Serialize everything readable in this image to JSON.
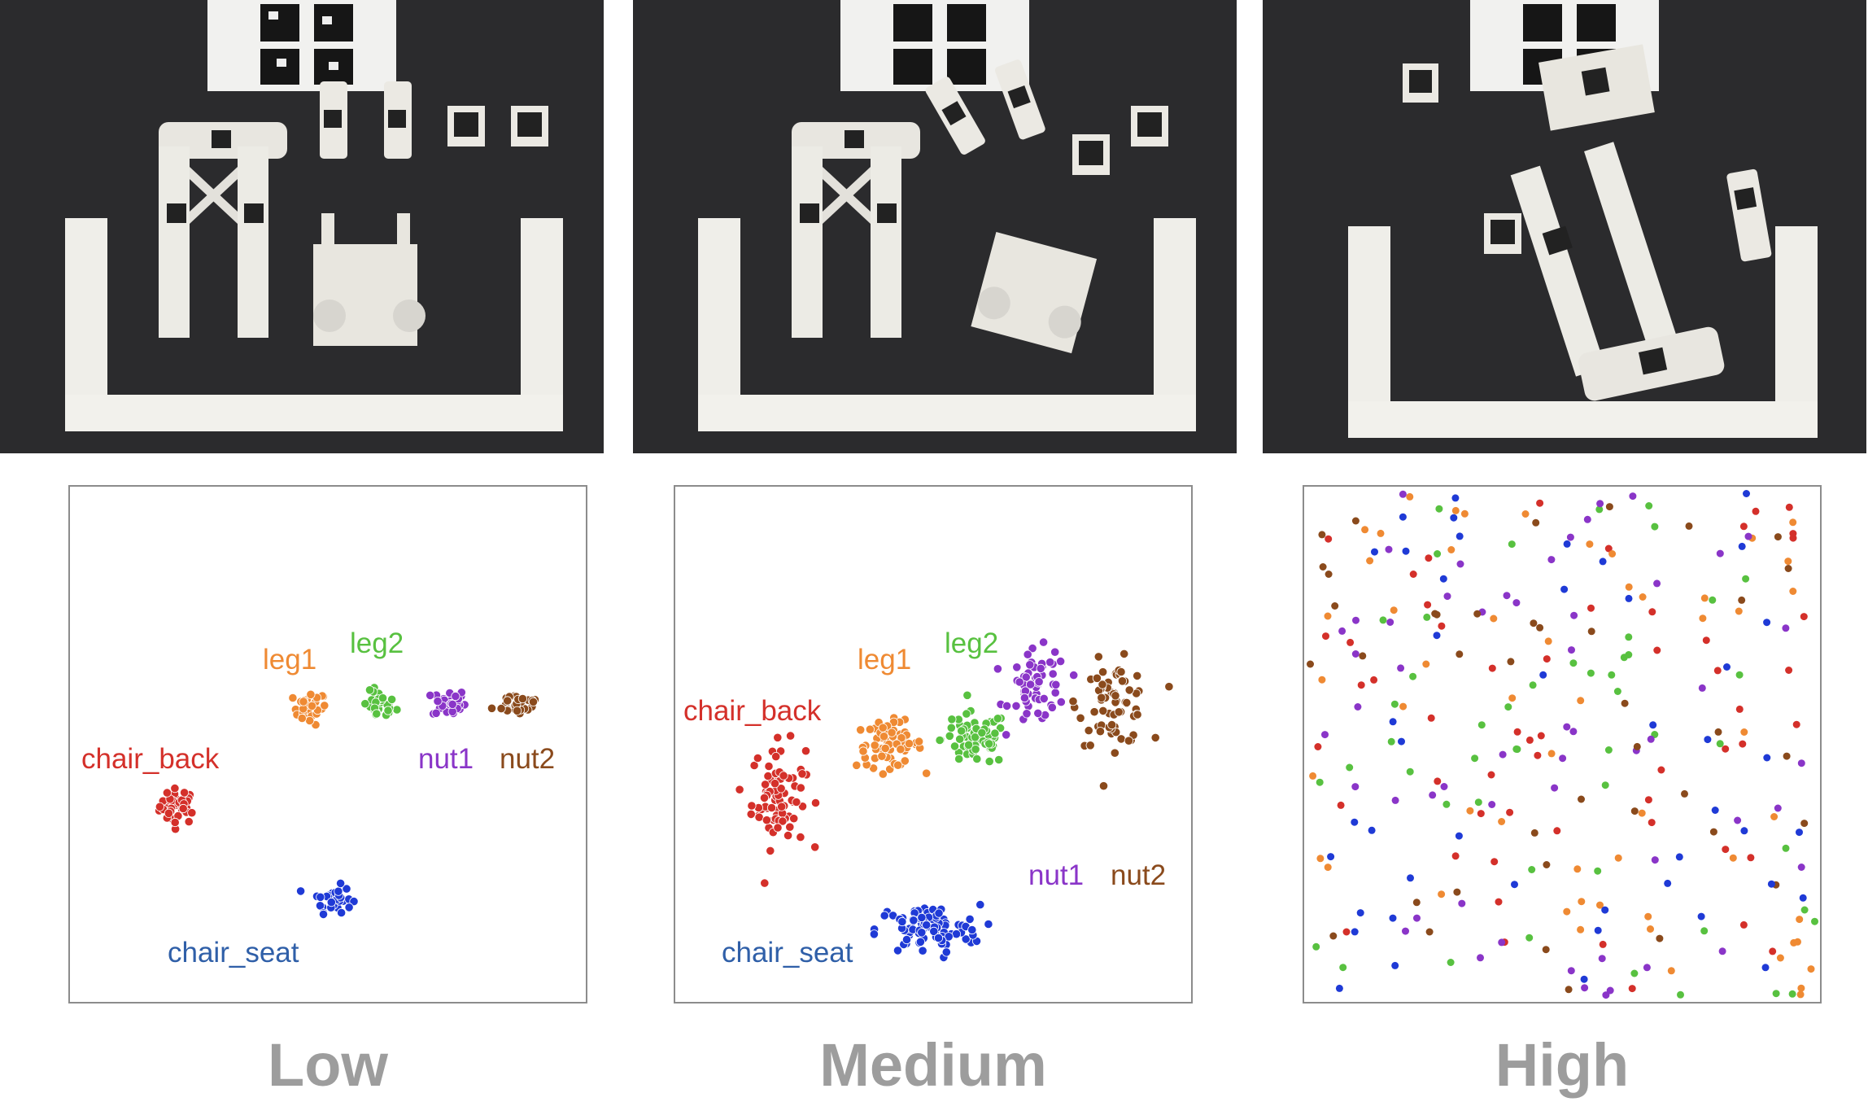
{
  "colors": {
    "chair_back": "#d4302a",
    "leg1": "#ef8a33",
    "leg2": "#58c140",
    "nut1": "#8a35c8",
    "nut2": "#8a4a1c",
    "chair_seat": "#1f3ad6",
    "chair_seat_label": "#2f5fa8",
    "level_text": "#9d9d9d"
  },
  "photos": [
    {
      "scene": "assembly parts neatly separated on dark mat"
    },
    {
      "scene": "assembly parts slightly displaced"
    },
    {
      "scene": "assembly parts heavily scattered"
    }
  ],
  "chart_data": [
    {
      "type": "scatter",
      "level": "Low",
      "xlim": [
        0,
        100
      ],
      "ylim": [
        0,
        100
      ],
      "series": [
        {
          "name": "chair_back",
          "center": [
            21,
            38
          ],
          "spread": [
            1.8,
            1.7
          ],
          "n": 40
        },
        {
          "name": "leg1",
          "center": [
            46.5,
            57
          ],
          "spread": [
            1.6,
            1.6
          ],
          "n": 30
        },
        {
          "name": "leg2",
          "center": [
            60,
            57.5
          ],
          "spread": [
            1.6,
            1.4
          ],
          "n": 30
        },
        {
          "name": "nut1",
          "center": [
            73.5,
            58
          ],
          "spread": [
            1.6,
            1.4
          ],
          "n": 30
        },
        {
          "name": "nut2",
          "center": [
            87,
            58
          ],
          "spread": [
            2.4,
            1.2
          ],
          "n": 30
        },
        {
          "name": "chair_seat",
          "center": [
            51,
            20
          ],
          "spread": [
            1.8,
            1.3
          ],
          "n": 35
        }
      ],
      "labels": [
        {
          "series": "leg1",
          "text": "leg1"
        },
        {
          "series": "leg2",
          "text": "leg2"
        },
        {
          "series": "chair_back",
          "text": "chair_back"
        },
        {
          "series": "nut1",
          "text": "nut1"
        },
        {
          "series": "nut2",
          "text": "nut2"
        },
        {
          "series": "chair_seat",
          "text": "chair_seat"
        }
      ]
    },
    {
      "type": "scatter",
      "level": "Medium",
      "xlim": [
        0,
        100
      ],
      "ylim": [
        0,
        100
      ],
      "series": [
        {
          "name": "chair_back",
          "center": [
            20,
            40
          ],
          "spread": [
            2.6,
            5.0
          ],
          "n": 80
        },
        {
          "name": "leg1",
          "center": [
            41.5,
            50
          ],
          "spread": [
            3.2,
            2.2
          ],
          "n": 70
        },
        {
          "name": "leg2",
          "center": [
            58,
            51
          ],
          "spread": [
            3.2,
            2.6
          ],
          "n": 70
        },
        {
          "name": "nut1",
          "center": [
            70.5,
            61
          ],
          "spread": [
            2.8,
            3.6
          ],
          "n": 60
        },
        {
          "name": "nut2",
          "center": [
            85,
            58
          ],
          "spread": [
            3.4,
            4.0
          ],
          "n": 70
        },
        {
          "name": "chair_seat",
          "center": [
            49,
            14
          ],
          "spread": [
            5.0,
            2.4
          ],
          "n": 90
        }
      ],
      "labels": [
        {
          "series": "chair_back",
          "text": "chair_back"
        },
        {
          "series": "leg1",
          "text": "leg1"
        },
        {
          "series": "leg2",
          "text": "leg2"
        },
        {
          "series": "nut1",
          "text": "nut1"
        },
        {
          "series": "nut2",
          "text": "nut2"
        },
        {
          "series": "chair_seat",
          "text": "chair_seat"
        }
      ]
    },
    {
      "type": "scatter",
      "level": "High",
      "xlim": [
        0,
        100
      ],
      "ylim": [
        0,
        100
      ],
      "series": [
        {
          "name": "chair_back",
          "n": 55
        },
        {
          "name": "leg1",
          "n": 55
        },
        {
          "name": "leg2",
          "n": 50
        },
        {
          "name": "nut1",
          "n": 55
        },
        {
          "name": "nut2",
          "n": 40
        },
        {
          "name": "chair_seat",
          "n": 45
        }
      ],
      "labels": []
    }
  ],
  "levels": {
    "low": "Low",
    "medium": "Medium",
    "high": "High"
  }
}
